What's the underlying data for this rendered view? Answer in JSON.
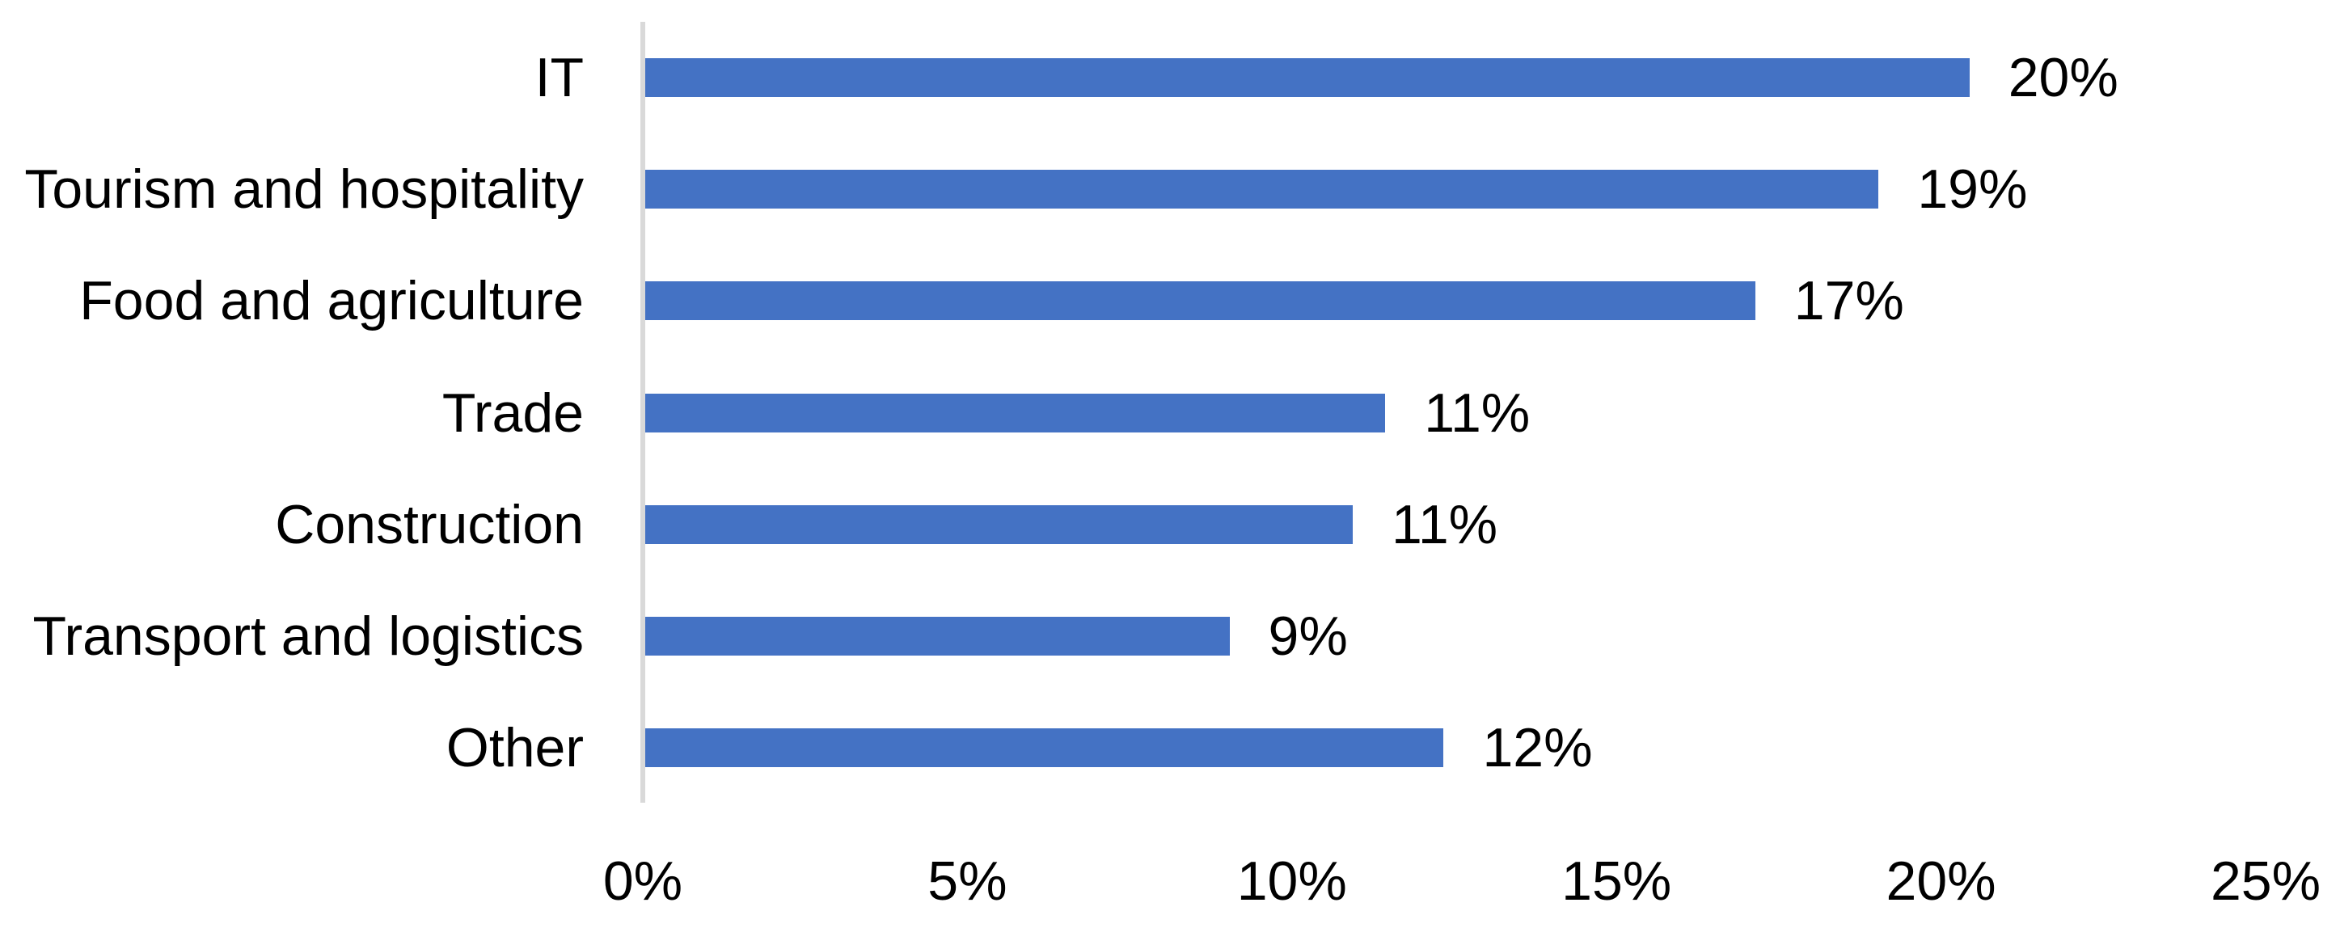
{
  "chart_data": {
    "type": "bar",
    "orientation": "horizontal",
    "title": "",
    "categories": [
      "IT",
      "Tourism and hospitality",
      "Food and agriculture",
      "Trade",
      "Construction",
      "Transport and logistics",
      "Other"
    ],
    "values": [
      20,
      19,
      17,
      11,
      11,
      9,
      12
    ],
    "value_labels": [
      "20%",
      "19%",
      "17%",
      "11%",
      "11%",
      "9%",
      "12%"
    ],
    "bar_lengths_pct_estimate": [
      20.4,
      19.0,
      17.1,
      11.4,
      10.9,
      9.0,
      12.3
    ],
    "x_ticks": [
      "0%",
      "5%",
      "10%",
      "15%",
      "20%",
      "25%"
    ],
    "x_tick_values": [
      0,
      5,
      10,
      15,
      20,
      25
    ],
    "xlabel": "",
    "ylabel": "",
    "xlim": [
      0,
      25
    ],
    "legend": "none",
    "gridlines": "none",
    "data_labels": "outside-end",
    "colors": {
      "bar": "#4472C4",
      "axis_line": "#D9D9D9",
      "text": "#000000",
      "background": "#FFFFFF"
    }
  }
}
